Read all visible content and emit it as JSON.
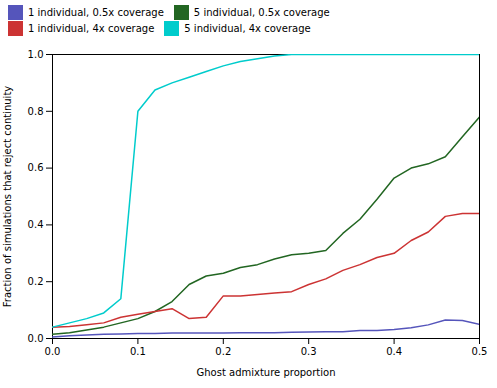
{
  "chart_data": {
    "type": "line",
    "xlabel": "Ghost admixture proportion",
    "ylabel": "Fraction of simulations that reject continuity",
    "xlim": [
      0.0,
      0.5
    ],
    "ylim": [
      0.0,
      1.0
    ],
    "xticks": [
      {
        "value": 0,
        "label": "0.0"
      },
      0.1,
      0.2,
      0.3,
      0.4,
      0.5
    ],
    "yticks": [
      {
        "value": 0,
        "label": "0.0"
      },
      0.2,
      0.4,
      0.6,
      0.8,
      {
        "value": 1,
        "label": "1.0"
      }
    ],
    "grid": false,
    "legend": "upper left",
    "x": [
      0.0,
      0.02,
      0.04,
      0.06,
      0.08,
      0.1,
      0.12,
      0.14,
      0.16,
      0.18,
      0.2,
      0.22,
      0.24,
      0.26,
      0.28,
      0.3,
      0.32,
      0.34,
      0.36,
      0.38,
      0.4,
      0.42,
      0.44,
      0.46,
      0.48,
      0.5
    ],
    "series": [
      {
        "name": "1 individual, 0.5x coverage",
        "color": "#5555bb",
        "values": [
          0.005,
          0.01,
          0.012,
          0.015,
          0.016,
          0.018,
          0.018,
          0.019,
          0.019,
          0.019,
          0.019,
          0.02,
          0.02,
          0.02,
          0.022,
          0.023,
          0.024,
          0.024,
          0.028,
          0.028,
          0.032,
          0.038,
          0.048,
          0.065,
          0.063,
          0.05
        ]
      },
      {
        "name": "5 individual, 0.5x coverage",
        "color": "#226622",
        "values": [
          0.015,
          0.02,
          0.03,
          0.04,
          0.055,
          0.07,
          0.095,
          0.13,
          0.19,
          0.22,
          0.23,
          0.25,
          0.26,
          0.28,
          0.295,
          0.3,
          0.31,
          0.37,
          0.42,
          0.49,
          0.565,
          0.6,
          0.615,
          0.64,
          0.71,
          0.78
        ]
      },
      {
        "name": "1 individual, 4x coverage",
        "color": "#cc3333",
        "values": [
          0.04,
          0.042,
          0.048,
          0.055,
          0.075,
          0.085,
          0.095,
          0.105,
          0.07,
          0.075,
          0.15,
          0.15,
          0.155,
          0.16,
          0.165,
          0.19,
          0.21,
          0.24,
          0.26,
          0.285,
          0.3,
          0.345,
          0.375,
          0.43,
          0.44,
          0.44
        ]
      },
      {
        "name": "5 individual, 4x coverage",
        "color": "#00cccc",
        "values": [
          0.04,
          0.055,
          0.07,
          0.09,
          0.14,
          0.8,
          0.875,
          0.9,
          0.92,
          0.94,
          0.96,
          0.975,
          0.985,
          0.995,
          1.0,
          1.0,
          1.0,
          1.0,
          1.0,
          1.0,
          1.0,
          1.0,
          1.0,
          1.0,
          1.0,
          1.0
        ]
      }
    ]
  }
}
